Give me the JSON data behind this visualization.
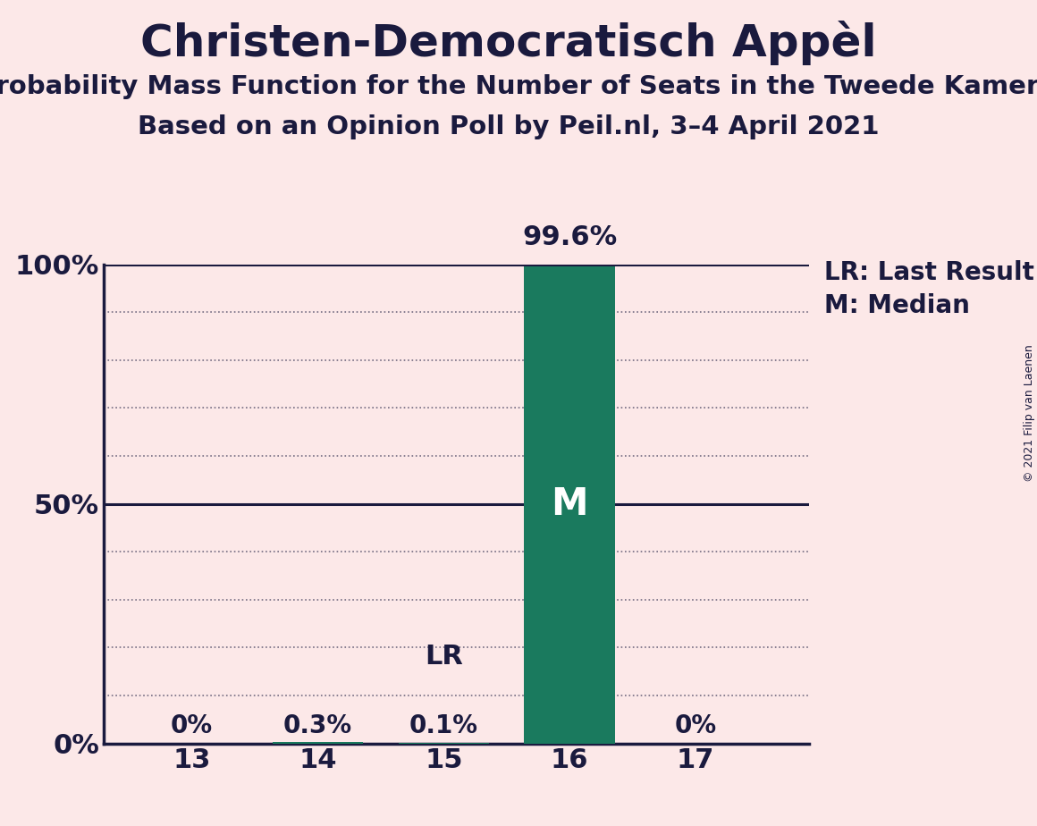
{
  "title": "Christen-Democratisch Appèl",
  "subtitle1": "Probability Mass Function for the Number of Seats in the Tweede Kamer",
  "subtitle2": "Based on an Opinion Poll by Peil.nl, 3–4 April 2021",
  "copyright": "© 2021 Filip van Laenen",
  "background_color": "#fce8e8",
  "bar_color": "#1a7a5e",
  "text_color": "#1a1a3e",
  "categories": [
    13,
    14,
    15,
    16,
    17
  ],
  "values": [
    0.0,
    0.003,
    0.001,
    0.996,
    0.0
  ],
  "bar_labels": [
    "0%",
    "0.3%",
    "0.1%",
    "99.6%",
    "0%"
  ],
  "last_result_seat": 15,
  "median_seat": 16,
  "ylim": [
    0,
    1.0
  ],
  "yticks": [
    0.0,
    0.5,
    1.0
  ],
  "ytick_labels": [
    "0%",
    "50%",
    "100%"
  ],
  "minor_yticks": [
    0.1,
    0.2,
    0.3,
    0.4,
    0.6,
    0.7,
    0.8,
    0.9
  ],
  "legend_lr": "LR: Last Result",
  "legend_m": "M: Median",
  "lr_label": "LR",
  "m_label": "M",
  "xlim": [
    12.3,
    17.9
  ]
}
